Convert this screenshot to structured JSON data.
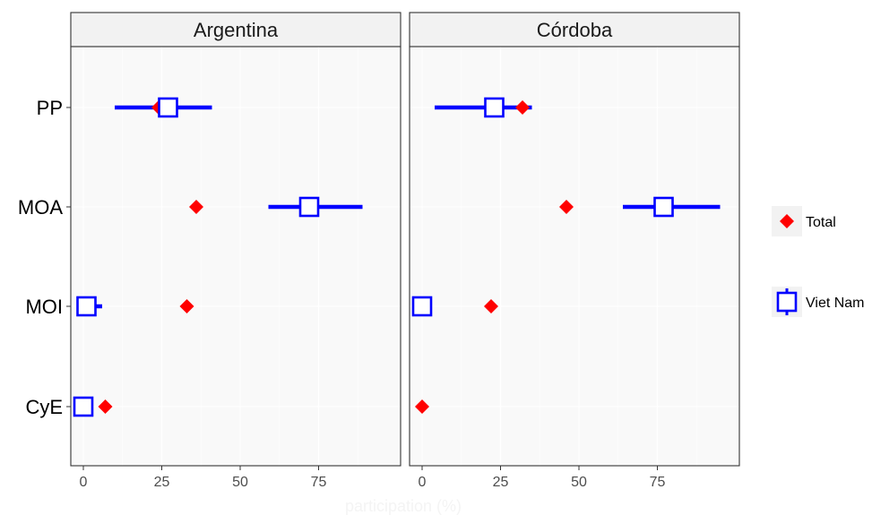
{
  "chart_data": {
    "type": "dot-range",
    "xlabel": "participation (%)",
    "categories": [
      "PP",
      "MOA",
      "MOI",
      "CyE"
    ],
    "xticks": [
      0,
      25,
      50,
      75
    ],
    "xlim": [
      -4,
      100
    ],
    "panels": [
      {
        "name": "Argentina",
        "total": [
          24,
          36,
          33,
          7
        ],
        "viet_nam": [
          27,
          72,
          1,
          0
        ],
        "viet_nam_range": [
          [
            10,
            41
          ],
          [
            59,
            89
          ],
          [
            0,
            6
          ],
          [
            -1,
            1
          ]
        ]
      },
      {
        "name": "Córdoba",
        "total": [
          32,
          46,
          22,
          0
        ],
        "viet_nam": [
          23,
          77,
          0,
          null
        ],
        "viet_nam_range": [
          [
            4,
            35
          ],
          [
            64,
            95
          ],
          [
            0,
            0
          ],
          null
        ]
      }
    ],
    "legend": [
      {
        "key": "total",
        "label": "Total",
        "shape": "diamond",
        "color": "#ff0000"
      },
      {
        "key": "viet_nam",
        "label": "Viet Nam",
        "shape": "open-square",
        "color": "#0000ff"
      }
    ],
    "legend_position": "right",
    "grid": true,
    "colors": {
      "panel_bg": "#f9f9f9",
      "strip_bg": "#f2f2f2",
      "grid": "#ffffff",
      "axis_title": "#f4f4f4"
    }
  }
}
